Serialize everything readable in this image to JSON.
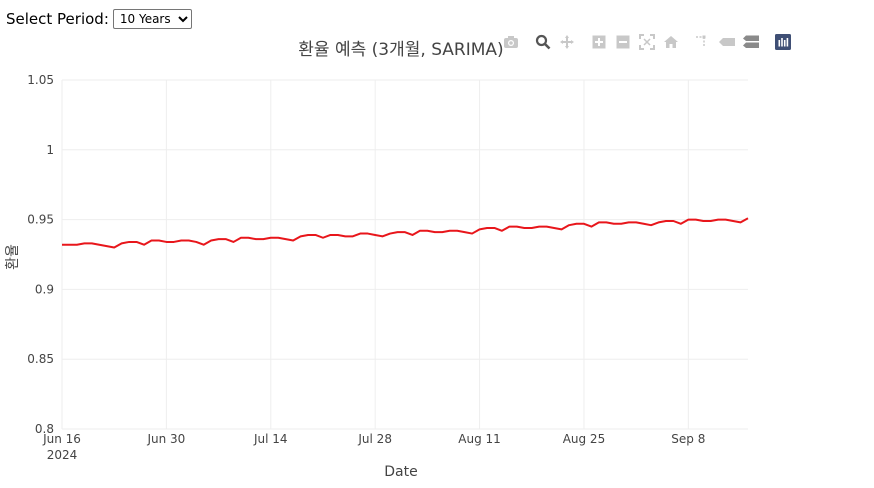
{
  "controls": {
    "period_label": "Select Period:",
    "period_selected": "10 Years",
    "period_options": [
      "10 Years"
    ]
  },
  "modebar": {
    "icons": [
      "camera-icon",
      "zoom-icon",
      "pan-icon",
      "zoom-in-icon",
      "zoom-out-icon",
      "autoscale-icon",
      "home-icon",
      "spike-lines-icon",
      "hover-closest-icon",
      "hover-compare-icon",
      "plotly-logo-icon"
    ]
  },
  "colors": {
    "line": "#e8161b",
    "grid": "#eeeeee",
    "text": "#444444"
  },
  "chart_data": {
    "type": "line",
    "title": "환율 예측 (3개월, SARIMA)",
    "xlabel": "Date",
    "ylabel": "환율",
    "ylim": [
      0.8,
      1.05
    ],
    "xlim": [
      "2024-06-16",
      "2024-09-16"
    ],
    "grid": true,
    "yticks": [
      0.8,
      0.85,
      0.9,
      0.95,
      1,
      1.05
    ],
    "yticklabels": [
      "0.8",
      "0.85",
      "0.9",
      "0.95",
      "1",
      "1.05"
    ],
    "xticks": [
      "2024-06-16",
      "2024-06-30",
      "2024-07-14",
      "2024-07-28",
      "2024-08-11",
      "2024-08-25",
      "2024-09-08"
    ],
    "xticklabels": [
      "Jun 16\n2024",
      "Jun 30",
      "Jul 14",
      "Jul 28",
      "Aug 11",
      "Aug 25",
      "Sep 8"
    ],
    "series": [
      {
        "color": "#e8161b",
        "x": [
          "2024-06-16",
          "2024-06-17",
          "2024-06-18",
          "2024-06-19",
          "2024-06-20",
          "2024-06-21",
          "2024-06-22",
          "2024-06-23",
          "2024-06-24",
          "2024-06-25",
          "2024-06-26",
          "2024-06-27",
          "2024-06-28",
          "2024-06-29",
          "2024-06-30",
          "2024-07-01",
          "2024-07-02",
          "2024-07-03",
          "2024-07-04",
          "2024-07-05",
          "2024-07-06",
          "2024-07-07",
          "2024-07-08",
          "2024-07-09",
          "2024-07-10",
          "2024-07-11",
          "2024-07-12",
          "2024-07-13",
          "2024-07-14",
          "2024-07-15",
          "2024-07-16",
          "2024-07-17",
          "2024-07-18",
          "2024-07-19",
          "2024-07-20",
          "2024-07-21",
          "2024-07-22",
          "2024-07-23",
          "2024-07-24",
          "2024-07-25",
          "2024-07-26",
          "2024-07-27",
          "2024-07-28",
          "2024-07-29",
          "2024-07-30",
          "2024-07-31",
          "2024-08-01",
          "2024-08-02",
          "2024-08-03",
          "2024-08-04",
          "2024-08-05",
          "2024-08-06",
          "2024-08-07",
          "2024-08-08",
          "2024-08-09",
          "2024-08-10",
          "2024-08-11",
          "2024-08-12",
          "2024-08-13",
          "2024-08-14",
          "2024-08-15",
          "2024-08-16",
          "2024-08-17",
          "2024-08-18",
          "2024-08-19",
          "2024-08-20",
          "2024-08-21",
          "2024-08-22",
          "2024-08-23",
          "2024-08-24",
          "2024-08-25",
          "2024-08-26",
          "2024-08-27",
          "2024-08-28",
          "2024-08-29",
          "2024-08-30",
          "2024-08-31",
          "2024-09-01",
          "2024-09-02",
          "2024-09-03",
          "2024-09-04",
          "2024-09-05",
          "2024-09-06",
          "2024-09-07",
          "2024-09-08",
          "2024-09-09",
          "2024-09-10",
          "2024-09-11",
          "2024-09-12",
          "2024-09-13",
          "2024-09-14",
          "2024-09-15",
          "2024-09-16"
        ],
        "y": [
          0.932,
          0.932,
          0.932,
          0.933,
          0.933,
          0.932,
          0.931,
          0.93,
          0.933,
          0.934,
          0.934,
          0.932,
          0.935,
          0.935,
          0.934,
          0.934,
          0.935,
          0.935,
          0.934,
          0.932,
          0.935,
          0.936,
          0.936,
          0.934,
          0.937,
          0.937,
          0.936,
          0.936,
          0.937,
          0.937,
          0.936,
          0.935,
          0.938,
          0.939,
          0.939,
          0.937,
          0.939,
          0.939,
          0.938,
          0.938,
          0.94,
          0.94,
          0.939,
          0.938,
          0.94,
          0.941,
          0.941,
          0.939,
          0.942,
          0.942,
          0.941,
          0.941,
          0.942,
          0.942,
          0.941,
          0.94,
          0.943,
          0.944,
          0.944,
          0.942,
          0.945,
          0.945,
          0.944,
          0.944,
          0.945,
          0.945,
          0.944,
          0.943,
          0.946,
          0.947,
          0.947,
          0.945,
          0.948,
          0.948,
          0.947,
          0.947,
          0.948,
          0.948,
          0.947,
          0.946,
          0.948,
          0.949,
          0.949,
          0.947,
          0.95,
          0.95,
          0.949,
          0.949,
          0.95,
          0.95,
          0.949,
          0.948,
          0.951
        ]
      }
    ]
  }
}
